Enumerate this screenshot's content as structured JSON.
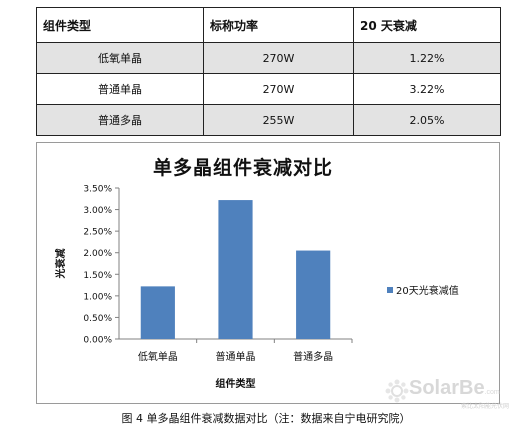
{
  "table": {
    "headers": [
      "组件类型",
      "标称功率",
      "20 天衰减"
    ],
    "rows": [
      [
        "低氧单晶",
        "270W",
        "1.22%"
      ],
      [
        "普通单晶",
        "270W",
        "3.22%"
      ],
      [
        "普通多晶",
        "255W",
        "2.05%"
      ]
    ]
  },
  "chart_data": {
    "type": "bar",
    "title": "单多晶组件衰减对比",
    "xlabel": "组件类型",
    "ylabel": "光衰减",
    "categories": [
      "低氧单晶",
      "普通单晶",
      "普通多晶"
    ],
    "series": [
      {
        "name": "20天光衰减值",
        "values": [
          0.0122,
          0.0322,
          0.0205
        ]
      }
    ],
    "ylim": [
      0,
      0.035
    ],
    "yticks": [
      "0.00%",
      "0.50%",
      "1.00%",
      "1.50%",
      "2.00%",
      "2.50%",
      "3.00%",
      "3.50%"
    ],
    "bar_color": "#4f81bd",
    "legend_position": "right",
    "grid": false
  },
  "caption": "图 4  单多晶组件衰减数据对比（注：数据来自宁电研究院）",
  "watermark": {
    "text": "SolarBe",
    "suffix": ".com",
    "tagline": "索比太阳能光伏网"
  }
}
